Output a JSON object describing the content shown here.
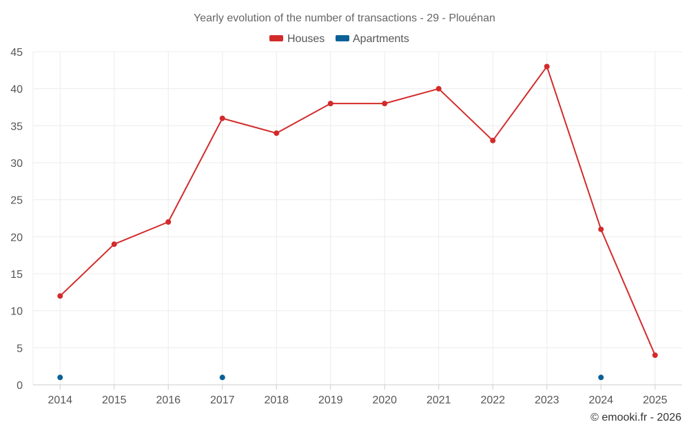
{
  "chart_data": {
    "type": "line",
    "title": "Yearly evolution of the number of transactions - 29 - Plouénan",
    "categories": [
      "2014",
      "2015",
      "2016",
      "2017",
      "2018",
      "2019",
      "2020",
      "2021",
      "2022",
      "2023",
      "2024",
      "2025"
    ],
    "ylim": [
      0,
      45
    ],
    "yticks": [
      0,
      5,
      10,
      15,
      20,
      25,
      30,
      35,
      40,
      45
    ],
    "grid": true,
    "legend_position": "top-center",
    "series": [
      {
        "name": "Houses",
        "color": "#d32a2a",
        "values": [
          12,
          19,
          22,
          36,
          34,
          38,
          38,
          40,
          33,
          43,
          21,
          4
        ],
        "line": true
      },
      {
        "name": "Apartments",
        "color": "#0b6196",
        "values": [
          1,
          null,
          null,
          1,
          null,
          null,
          null,
          null,
          null,
          null,
          1,
          null
        ],
        "line": false
      }
    ]
  },
  "credit": "© emooki.fr - 2026"
}
